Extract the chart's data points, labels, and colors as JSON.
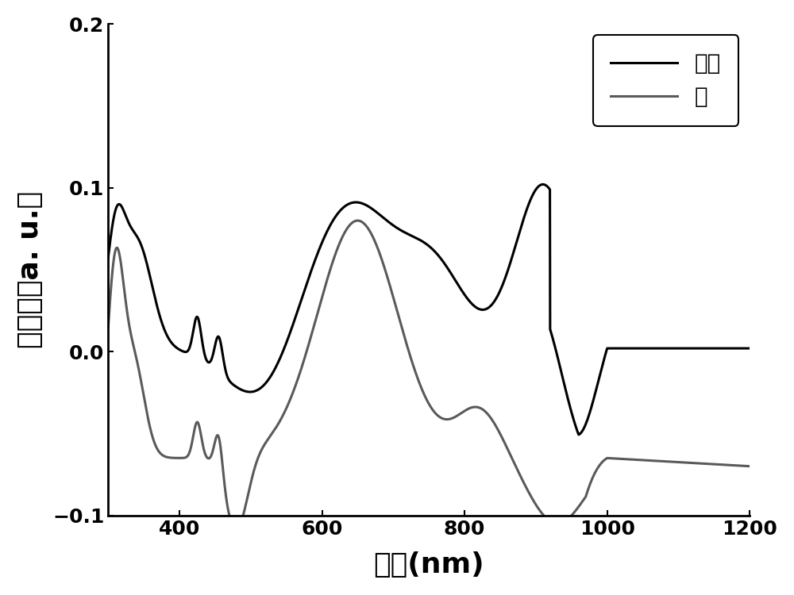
{
  "xlabel": "波长(nm)",
  "ylabel": "吸收率（a. u.）",
  "xlim": [
    300,
    1200
  ],
  "ylim": [
    -0.1,
    0.2
  ],
  "yticks": [
    -0.1,
    0.0,
    0.1,
    0.2
  ],
  "xticks": [
    400,
    600,
    800,
    1000,
    1200
  ],
  "legend_solution": "溶液",
  "legend_film": "膜",
  "solution_color": "#000000",
  "film_color": "#5a5a5a",
  "bg_color": "#ffffff",
  "linewidth": 2.2
}
